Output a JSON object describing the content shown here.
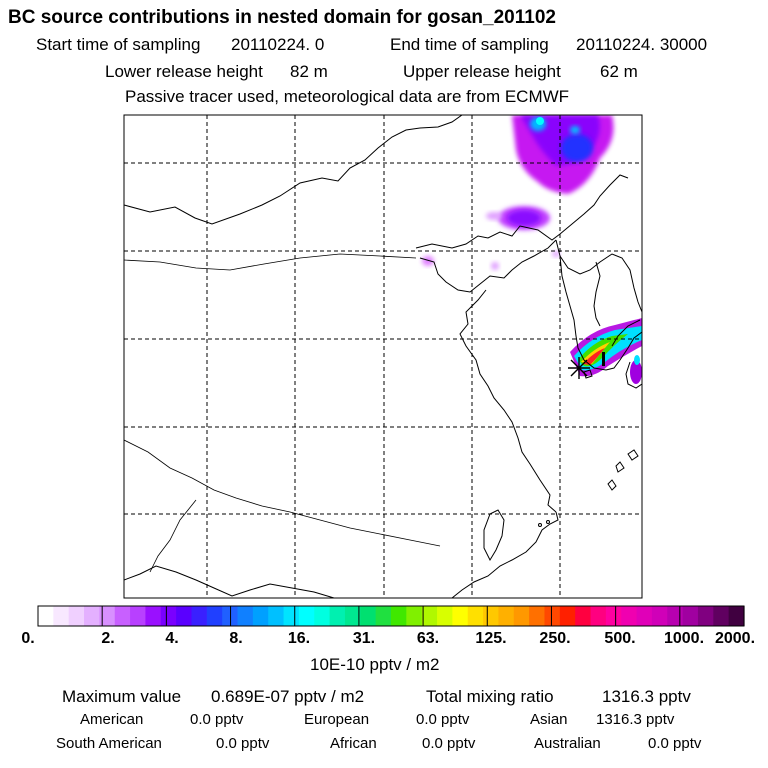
{
  "header": {
    "title": "BC  source contributions in nested domain for gosan_201102",
    "start_label": "Start time of sampling",
    "start_value": "20110224.     0",
    "end_label": "End time of sampling",
    "end_value": "20110224. 30000",
    "lower_label": "Lower release height",
    "lower_value": "82 m",
    "upper_label": "Upper release height",
    "upper_value": "62 m",
    "note": "Passive tracer used, meteorological data are from ECMWF"
  },
  "map": {
    "name": "nested domain",
    "receptor": "gosan",
    "colors": {
      "coast": "#000000",
      "grid": "#000000",
      "receptor_marker": "#000000"
    }
  },
  "colorbar": {
    "ticks": [
      "0.",
      "2.",
      "4.",
      "8.",
      "16.",
      "31.",
      "63.",
      "125.",
      "250.",
      "500.",
      "1000.",
      "2000."
    ],
    "colors": [
      "#ffffff",
      "#f8e8ff",
      "#f0d0ff",
      "#e4b0ff",
      "#d890ff",
      "#c860ff",
      "#b840ff",
      "#9a10ff",
      "#7a00ff",
      "#5a00ff",
      "#3a20ff",
      "#2040ff",
      "#2060ff",
      "#1080ff",
      "#00a0ff",
      "#00c0ff",
      "#00e4ff",
      "#00ffff",
      "#00ffe0",
      "#00f0b0",
      "#00e890",
      "#00e070",
      "#20e040",
      "#40e800",
      "#80f000",
      "#b0f800",
      "#d8ff00",
      "#ffff00",
      "#ffe000",
      "#ffc800",
      "#ffb000",
      "#ff9800",
      "#ff7000",
      "#ff4800",
      "#ff2000",
      "#ff0040",
      "#ff0080",
      "#ff00a0",
      "#f000b0",
      "#e000b8",
      "#d000b8",
      "#b800b0",
      "#a000a0",
      "#800080",
      "#600060",
      "#400040"
    ],
    "unit_label": "10E-10 pptv / m2"
  },
  "summary": {
    "max_label": "Maximum value",
    "max_value": "0.689E-07 pptv / m2",
    "total_label": "Total mixing ratio",
    "total_value": "1316.3 pptv",
    "regions": [
      {
        "name": "American",
        "value": "0.0 pptv"
      },
      {
        "name": "European",
        "value": "0.0 pptv"
      },
      {
        "name": "Asian",
        "value": "1316.3 pptv"
      },
      {
        "name": "South American",
        "value": "0.0 pptv"
      },
      {
        "name": "African",
        "value": "0.0 pptv"
      },
      {
        "name": "Australian",
        "value": "0.0 pptv"
      }
    ]
  }
}
